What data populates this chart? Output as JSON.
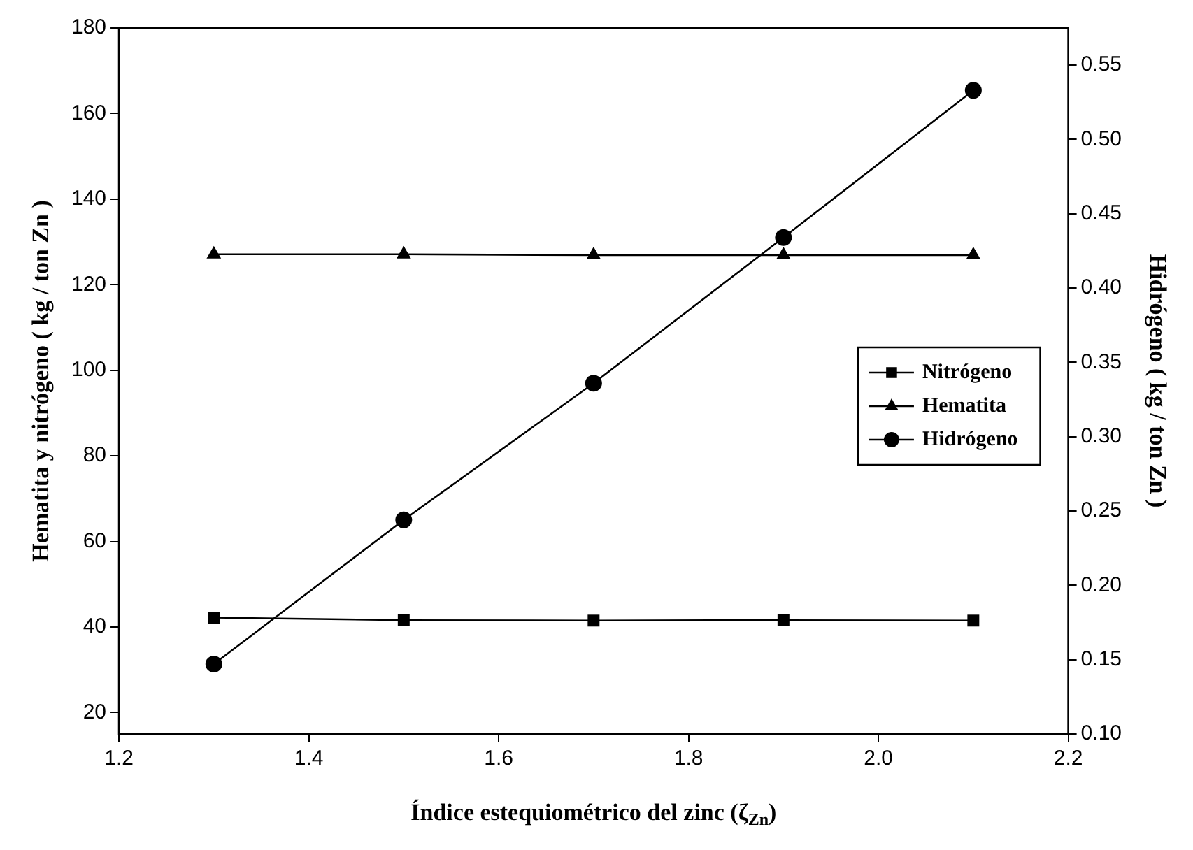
{
  "chart_data": {
    "type": "line",
    "xlabel": "Índice estequiométrico del zinc (ζ$_{Zn}$)",
    "ylabel": "Hematita y nitrógeno ( kg / ton Zn )",
    "y2label": "Hidrógeno ( kg / ton Zn )",
    "x": [
      1.3,
      1.5,
      1.7,
      1.9,
      2.1
    ],
    "series": [
      {
        "name": "Nitrógeno",
        "color": "#000000",
        "marker": "square",
        "values": [
          42.2,
          41.6,
          41.5,
          41.6,
          41.5
        ]
      },
      {
        "name": "Hematita",
        "color": "#000000",
        "marker": "triangle",
        "values": [
          127.1,
          127.1,
          126.9,
          126.9,
          126.9
        ]
      },
      {
        "name": "Hidrógeno",
        "color": "#000000",
        "marker": "circle",
        "axis": "y2",
        "values": [
          0.147,
          0.244,
          0.336,
          0.434,
          0.533
        ]
      }
    ],
    "xlim": [
      1.2,
      2.2
    ],
    "xticks": [
      {
        "value": 1.2,
        "label": "1.2"
      },
      {
        "value": 1.4,
        "label": "1.4"
      },
      {
        "value": 1.6,
        "label": "1.6"
      },
      {
        "value": 1.8,
        "label": "1.8"
      },
      {
        "value": 2.0,
        "label": "2.0"
      },
      {
        "value": 2.2,
        "label": "2.2"
      }
    ],
    "ylim": [
      15,
      180
    ],
    "yticks": [
      20,
      40,
      60,
      80,
      100,
      120,
      140,
      160,
      180
    ],
    "y2lim": [
      0.1,
      0.575
    ],
    "y2ticks": [
      {
        "value": 0.1,
        "label": "0.10"
      },
      {
        "value": 0.15,
        "label": "0.15"
      },
      {
        "value": 0.2,
        "label": "0.20"
      },
      {
        "value": 0.25,
        "label": "0.25"
      },
      {
        "value": 0.3,
        "label": "0.30"
      },
      {
        "value": 0.35,
        "label": "0.35"
      },
      {
        "value": 0.4,
        "label": "0.40"
      },
      {
        "value": 0.45,
        "label": "0.45"
      },
      {
        "value": 0.5,
        "label": "0.50"
      },
      {
        "value": 0.55,
        "label": "0.55"
      }
    ],
    "grid": false,
    "legend": "right",
    "line_style": "solid"
  }
}
